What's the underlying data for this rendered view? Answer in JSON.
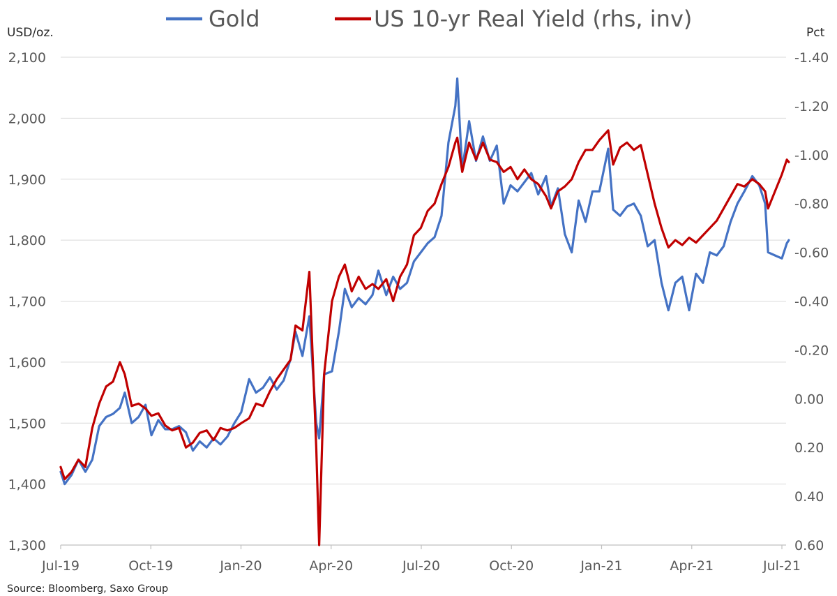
{
  "chart_data": {
    "type": "line",
    "title": "",
    "legend": {
      "placement": "top",
      "entries": [
        "Gold",
        "US 10-yr Real Yield (rhs, inv)"
      ]
    },
    "y_left": {
      "unit_label": "USD/oz.",
      "range": [
        1300,
        2100
      ],
      "ticks": [
        "1,300",
        "1,400",
        "1,500",
        "1,600",
        "1,700",
        "1,800",
        "1,900",
        "2,000",
        "2,100"
      ]
    },
    "y_right": {
      "unit_label": "Pct",
      "inverted": true,
      "range": [
        0.6,
        -1.4
      ],
      "ticks": [
        "-1.40",
        "-1.20",
        "-1.00",
        "-0.80",
        "-0.60",
        "-0.40",
        "-0.20",
        "0.00",
        "0.20",
        "0.40",
        "0.60"
      ]
    },
    "x_axis": {
      "ticks": [
        "Jul-19",
        "Oct-19",
        "Jan-20",
        "Apr-20",
        "Jul-20",
        "Oct-20",
        "Jan-21",
        "Apr-21",
        "Jul-21"
      ]
    },
    "grid": "horizontal",
    "series": [
      {
        "name": "Gold",
        "color": "#4472C4",
        "axis": "left",
        "points": [
          [
            "2019-07-01",
            1420
          ],
          [
            "2019-07-05",
            1400
          ],
          [
            "2019-07-12",
            1415
          ],
          [
            "2019-07-19",
            1440
          ],
          [
            "2019-07-26",
            1420
          ],
          [
            "2019-08-02",
            1440
          ],
          [
            "2019-08-09",
            1495
          ],
          [
            "2019-08-16",
            1510
          ],
          [
            "2019-08-23",
            1515
          ],
          [
            "2019-08-30",
            1525
          ],
          [
            "2019-09-04",
            1550
          ],
          [
            "2019-09-11",
            1500
          ],
          [
            "2019-09-18",
            1510
          ],
          [
            "2019-09-25",
            1530
          ],
          [
            "2019-10-01",
            1480
          ],
          [
            "2019-10-08",
            1505
          ],
          [
            "2019-10-15",
            1490
          ],
          [
            "2019-10-22",
            1490
          ],
          [
            "2019-10-29",
            1495
          ],
          [
            "2019-11-05",
            1485
          ],
          [
            "2019-11-12",
            1455
          ],
          [
            "2019-11-19",
            1470
          ],
          [
            "2019-11-26",
            1460
          ],
          [
            "2019-12-03",
            1475
          ],
          [
            "2019-12-10",
            1465
          ],
          [
            "2019-12-17",
            1478
          ],
          [
            "2019-12-24",
            1500
          ],
          [
            "2019-12-31",
            1518
          ],
          [
            "2020-01-08",
            1572
          ],
          [
            "2020-01-15",
            1550
          ],
          [
            "2020-01-22",
            1558
          ],
          [
            "2020-01-29",
            1575
          ],
          [
            "2020-02-05",
            1555
          ],
          [
            "2020-02-12",
            1570
          ],
          [
            "2020-02-19",
            1605
          ],
          [
            "2020-02-24",
            1650
          ],
          [
            "2020-03-02",
            1610
          ],
          [
            "2020-03-09",
            1675
          ],
          [
            "2020-03-16",
            1500
          ],
          [
            "2020-03-19",
            1475
          ],
          [
            "2020-03-24",
            1580
          ],
          [
            "2020-04-01",
            1585
          ],
          [
            "2020-04-08",
            1650
          ],
          [
            "2020-04-14",
            1720
          ],
          [
            "2020-04-21",
            1690
          ],
          [
            "2020-04-28",
            1705
          ],
          [
            "2020-05-05",
            1695
          ],
          [
            "2020-05-12",
            1710
          ],
          [
            "2020-05-18",
            1750
          ],
          [
            "2020-05-26",
            1710
          ],
          [
            "2020-06-02",
            1740
          ],
          [
            "2020-06-09",
            1720
          ],
          [
            "2020-06-16",
            1730
          ],
          [
            "2020-06-23",
            1765
          ],
          [
            "2020-06-30",
            1780
          ],
          [
            "2020-07-07",
            1795
          ],
          [
            "2020-07-14",
            1805
          ],
          [
            "2020-07-21",
            1840
          ],
          [
            "2020-07-28",
            1960
          ],
          [
            "2020-08-04",
            2020
          ],
          [
            "2020-08-06",
            2065
          ],
          [
            "2020-08-11",
            1915
          ],
          [
            "2020-08-18",
            1995
          ],
          [
            "2020-08-25",
            1930
          ],
          [
            "2020-09-01",
            1970
          ],
          [
            "2020-09-08",
            1930
          ],
          [
            "2020-09-15",
            1955
          ],
          [
            "2020-09-22",
            1860
          ],
          [
            "2020-09-29",
            1890
          ],
          [
            "2020-10-06",
            1880
          ],
          [
            "2020-10-13",
            1895
          ],
          [
            "2020-10-20",
            1910
          ],
          [
            "2020-10-27",
            1875
          ],
          [
            "2020-11-04",
            1905
          ],
          [
            "2020-11-09",
            1855
          ],
          [
            "2020-11-16",
            1885
          ],
          [
            "2020-11-23",
            1810
          ],
          [
            "2020-11-30",
            1780
          ],
          [
            "2020-12-07",
            1865
          ],
          [
            "2020-12-14",
            1830
          ],
          [
            "2020-12-21",
            1880
          ],
          [
            "2020-12-28",
            1880
          ],
          [
            "2021-01-06",
            1950
          ],
          [
            "2021-01-11",
            1850
          ],
          [
            "2021-01-18",
            1840
          ],
          [
            "2021-01-25",
            1855
          ],
          [
            "2021-02-01",
            1860
          ],
          [
            "2021-02-08",
            1840
          ],
          [
            "2021-02-15",
            1790
          ],
          [
            "2021-02-22",
            1800
          ],
          [
            "2021-03-01",
            1730
          ],
          [
            "2021-03-08",
            1685
          ],
          [
            "2021-03-15",
            1730
          ],
          [
            "2021-03-22",
            1740
          ],
          [
            "2021-03-29",
            1685
          ],
          [
            "2021-04-05",
            1745
          ],
          [
            "2021-04-12",
            1730
          ],
          [
            "2021-04-19",
            1780
          ],
          [
            "2021-04-26",
            1775
          ],
          [
            "2021-05-03",
            1790
          ],
          [
            "2021-05-10",
            1830
          ],
          [
            "2021-05-17",
            1860
          ],
          [
            "2021-05-24",
            1880
          ],
          [
            "2021-06-01",
            1905
          ],
          [
            "2021-06-08",
            1890
          ],
          [
            "2021-06-14",
            1860
          ],
          [
            "2021-06-17",
            1780
          ],
          [
            "2021-06-24",
            1775
          ],
          [
            "2021-07-01",
            1770
          ],
          [
            "2021-07-06",
            1795
          ],
          [
            "2021-07-08",
            1800
          ]
        ]
      },
      {
        "name": "US 10-yr Real Yield (rhs, inv)",
        "color": "#C00000",
        "axis": "right",
        "points": [
          [
            "2019-07-01",
            0.28
          ],
          [
            "2019-07-05",
            0.33
          ],
          [
            "2019-07-12",
            0.3
          ],
          [
            "2019-07-19",
            0.25
          ],
          [
            "2019-07-26",
            0.28
          ],
          [
            "2019-08-02",
            0.12
          ],
          [
            "2019-08-09",
            0.02
          ],
          [
            "2019-08-16",
            -0.05
          ],
          [
            "2019-08-23",
            -0.07
          ],
          [
            "2019-08-30",
            -0.15
          ],
          [
            "2019-09-04",
            -0.1
          ],
          [
            "2019-09-11",
            0.03
          ],
          [
            "2019-09-18",
            0.02
          ],
          [
            "2019-09-25",
            0.04
          ],
          [
            "2019-10-01",
            0.07
          ],
          [
            "2019-10-08",
            0.06
          ],
          [
            "2019-10-15",
            0.11
          ],
          [
            "2019-10-22",
            0.13
          ],
          [
            "2019-10-29",
            0.12
          ],
          [
            "2019-11-05",
            0.2
          ],
          [
            "2019-11-12",
            0.18
          ],
          [
            "2019-11-19",
            0.14
          ],
          [
            "2019-11-26",
            0.13
          ],
          [
            "2019-12-03",
            0.17
          ],
          [
            "2019-12-10",
            0.12
          ],
          [
            "2019-12-17",
            0.13
          ],
          [
            "2019-12-24",
            0.12
          ],
          [
            "2019-12-31",
            0.1
          ],
          [
            "2020-01-08",
            0.08
          ],
          [
            "2020-01-15",
            0.02
          ],
          [
            "2020-01-22",
            0.03
          ],
          [
            "2020-01-29",
            -0.03
          ],
          [
            "2020-02-05",
            -0.08
          ],
          [
            "2020-02-12",
            -0.12
          ],
          [
            "2020-02-19",
            -0.16
          ],
          [
            "2020-02-24",
            -0.3
          ],
          [
            "2020-03-02",
            -0.28
          ],
          [
            "2020-03-09",
            -0.52
          ],
          [
            "2020-03-16",
            0.2
          ],
          [
            "2020-03-19",
            0.6
          ],
          [
            "2020-03-24",
            -0.1
          ],
          [
            "2020-04-01",
            -0.4
          ],
          [
            "2020-04-08",
            -0.5
          ],
          [
            "2020-04-14",
            -0.55
          ],
          [
            "2020-04-21",
            -0.44
          ],
          [
            "2020-04-28",
            -0.5
          ],
          [
            "2020-05-05",
            -0.45
          ],
          [
            "2020-05-12",
            -0.47
          ],
          [
            "2020-05-18",
            -0.45
          ],
          [
            "2020-05-26",
            -0.49
          ],
          [
            "2020-06-02",
            -0.4
          ],
          [
            "2020-06-09",
            -0.5
          ],
          [
            "2020-06-16",
            -0.55
          ],
          [
            "2020-06-23",
            -0.67
          ],
          [
            "2020-06-30",
            -0.7
          ],
          [
            "2020-07-07",
            -0.77
          ],
          [
            "2020-07-14",
            -0.8
          ],
          [
            "2020-07-21",
            -0.88
          ],
          [
            "2020-07-28",
            -0.95
          ],
          [
            "2020-08-04",
            -1.05
          ],
          [
            "2020-08-06",
            -1.07
          ],
          [
            "2020-08-11",
            -0.93
          ],
          [
            "2020-08-18",
            -1.05
          ],
          [
            "2020-08-25",
            -0.98
          ],
          [
            "2020-09-01",
            -1.05
          ],
          [
            "2020-09-08",
            -0.98
          ],
          [
            "2020-09-15",
            -0.97
          ],
          [
            "2020-09-22",
            -0.93
          ],
          [
            "2020-09-29",
            -0.95
          ],
          [
            "2020-10-06",
            -0.9
          ],
          [
            "2020-10-13",
            -0.94
          ],
          [
            "2020-10-20",
            -0.9
          ],
          [
            "2020-10-27",
            -0.88
          ],
          [
            "2020-11-04",
            -0.83
          ],
          [
            "2020-11-09",
            -0.78
          ],
          [
            "2020-11-16",
            -0.85
          ],
          [
            "2020-11-23",
            -0.87
          ],
          [
            "2020-11-30",
            -0.9
          ],
          [
            "2020-12-07",
            -0.97
          ],
          [
            "2020-12-14",
            -1.02
          ],
          [
            "2020-12-21",
            -1.02
          ],
          [
            "2020-12-28",
            -1.06
          ],
          [
            "2021-01-06",
            -1.1
          ],
          [
            "2021-01-11",
            -0.96
          ],
          [
            "2021-01-18",
            -1.03
          ],
          [
            "2021-01-25",
            -1.05
          ],
          [
            "2021-02-01",
            -1.02
          ],
          [
            "2021-02-08",
            -1.04
          ],
          [
            "2021-02-15",
            -0.92
          ],
          [
            "2021-02-22",
            -0.8
          ],
          [
            "2021-03-01",
            -0.7
          ],
          [
            "2021-03-08",
            -0.62
          ],
          [
            "2021-03-15",
            -0.65
          ],
          [
            "2021-03-22",
            -0.63
          ],
          [
            "2021-03-29",
            -0.66
          ],
          [
            "2021-04-05",
            -0.64
          ],
          [
            "2021-04-12",
            -0.67
          ],
          [
            "2021-04-19",
            -0.7
          ],
          [
            "2021-04-26",
            -0.73
          ],
          [
            "2021-05-03",
            -0.78
          ],
          [
            "2021-05-10",
            -0.83
          ],
          [
            "2021-05-17",
            -0.88
          ],
          [
            "2021-05-24",
            -0.87
          ],
          [
            "2021-06-01",
            -0.9
          ],
          [
            "2021-06-08",
            -0.88
          ],
          [
            "2021-06-14",
            -0.85
          ],
          [
            "2021-06-17",
            -0.78
          ],
          [
            "2021-06-24",
            -0.85
          ],
          [
            "2021-07-01",
            -0.92
          ],
          [
            "2021-07-06",
            -0.98
          ],
          [
            "2021-07-08",
            -0.97
          ]
        ]
      }
    ]
  },
  "source": "Source:  Bloomberg,  Saxo Group"
}
